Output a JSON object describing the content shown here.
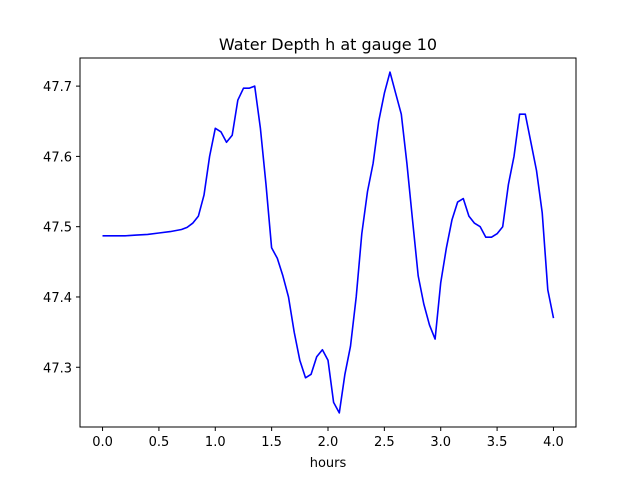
{
  "chart_data": {
    "type": "line",
    "title": "Water Depth h at gauge 10",
    "xlabel": "hours",
    "ylabel": "",
    "xlim": [
      -0.2,
      4.2
    ],
    "ylim": [
      47.215,
      47.74
    ],
    "xticks": [
      "0.0",
      "0.5",
      "1.0",
      "1.5",
      "2.0",
      "2.5",
      "3.0",
      "3.5",
      "4.0"
    ],
    "yticks": [
      "47.3",
      "47.4",
      "47.5",
      "47.6",
      "47.7"
    ],
    "grid": false,
    "legend": "none",
    "line_color": "#0000ff",
    "series": [
      {
        "x": [
          0.0,
          0.1,
          0.2,
          0.3,
          0.4,
          0.5,
          0.6,
          0.7,
          0.75,
          0.8,
          0.85,
          0.9,
          0.95,
          1.0,
          1.05,
          1.1,
          1.15,
          1.2,
          1.25,
          1.3,
          1.35,
          1.4,
          1.45,
          1.5,
          1.55,
          1.6,
          1.65,
          1.7,
          1.75,
          1.8,
          1.85,
          1.9,
          1.95,
          2.0,
          2.05,
          2.1,
          2.15,
          2.2,
          2.25,
          2.3,
          2.35,
          2.4,
          2.45,
          2.5,
          2.55,
          2.6,
          2.65,
          2.7,
          2.75,
          2.8,
          2.85,
          2.9,
          2.95,
          3.0,
          3.05,
          3.1,
          3.15,
          3.2,
          3.25,
          3.3,
          3.35,
          3.4,
          3.45,
          3.5,
          3.55,
          3.6,
          3.65,
          3.7,
          3.75,
          3.8,
          3.85,
          3.9,
          3.95,
          4.0
        ],
        "y": [
          47.487,
          47.487,
          47.487,
          47.488,
          47.489,
          47.491,
          47.493,
          47.496,
          47.499,
          47.505,
          47.515,
          47.545,
          47.6,
          47.64,
          47.635,
          47.62,
          47.63,
          47.68,
          47.697,
          47.697,
          47.7,
          47.64,
          47.56,
          47.47,
          47.455,
          47.43,
          47.4,
          47.35,
          47.31,
          47.285,
          47.29,
          47.315,
          47.325,
          47.31,
          47.25,
          47.235,
          47.29,
          47.33,
          47.4,
          47.49,
          47.55,
          47.59,
          47.65,
          47.69,
          47.72,
          47.69,
          47.66,
          47.59,
          47.51,
          47.43,
          47.39,
          47.36,
          47.34,
          47.42,
          47.47,
          47.51,
          47.535,
          47.54,
          47.515,
          47.505,
          47.5,
          47.485,
          47.485,
          47.49,
          47.5,
          47.56,
          47.6,
          47.66,
          47.66,
          47.62,
          47.58,
          47.52,
          47.41,
          47.37
        ]
      }
    ]
  }
}
